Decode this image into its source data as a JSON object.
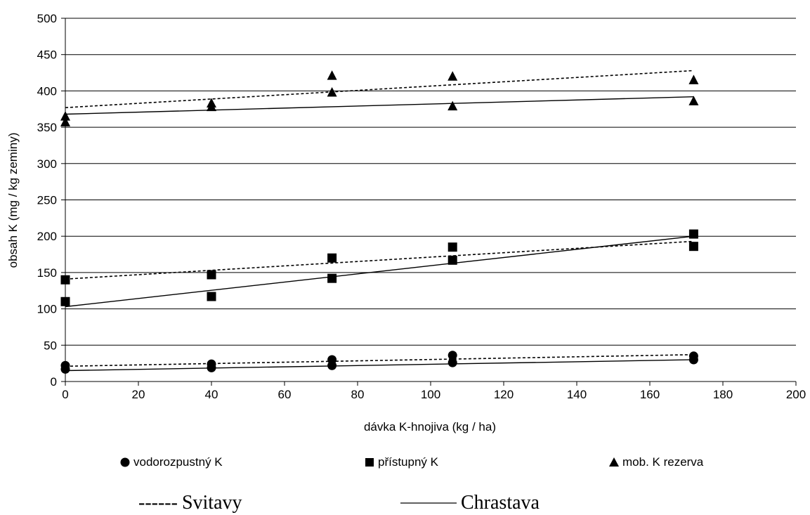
{
  "chart_data": {
    "type": "scatter",
    "xlabel": "dávka K-hnojiva (kg / ha)",
    "ylabel": "obsah K (mg / kg zeminy)",
    "xlim": [
      0,
      200
    ],
    "ylim": [
      0,
      500
    ],
    "x_ticks": [
      "0",
      "20",
      "40",
      "60",
      "80",
      "100",
      "120",
      "140",
      "160",
      "180",
      "200"
    ],
    "y_ticks": [
      "0",
      "50",
      "100",
      "150",
      "200",
      "250",
      "300",
      "350",
      "400",
      "450",
      "500"
    ],
    "grid": "horizontal",
    "x": [
      0,
      40,
      73,
      106,
      172
    ],
    "series": [
      {
        "name": "vodorozpustný K",
        "marker": "circle",
        "svitavy": [
          22,
          24,
          30,
          36,
          35
        ],
        "chrastava": [
          17,
          19,
          22,
          26,
          30
        ],
        "trend_svitavy": [
          21,
          37
        ],
        "trend_chrastava": [
          15,
          30
        ]
      },
      {
        "name": "přístupný K",
        "marker": "square",
        "svitavy": [
          140,
          147,
          170,
          185,
          186
        ],
        "chrastava": [
          110,
          117,
          142,
          167,
          203
        ],
        "trend_svitavy": [
          141,
          193
        ],
        "trend_chrastava": [
          103,
          200
        ]
      },
      {
        "name": "mob. K rezerva",
        "marker": "triangle",
        "svitavy": [
          365,
          383,
          421,
          420,
          415
        ],
        "chrastava": [
          357,
          378,
          398,
          379,
          386
        ],
        "trend_svitavy": [
          377,
          428
        ],
        "trend_chrastava": [
          368,
          392
        ]
      }
    ],
    "line_legend": {
      "svitavy_marker": "------",
      "svitavy": "Svitavy",
      "chrastava": "Chrastava"
    }
  }
}
